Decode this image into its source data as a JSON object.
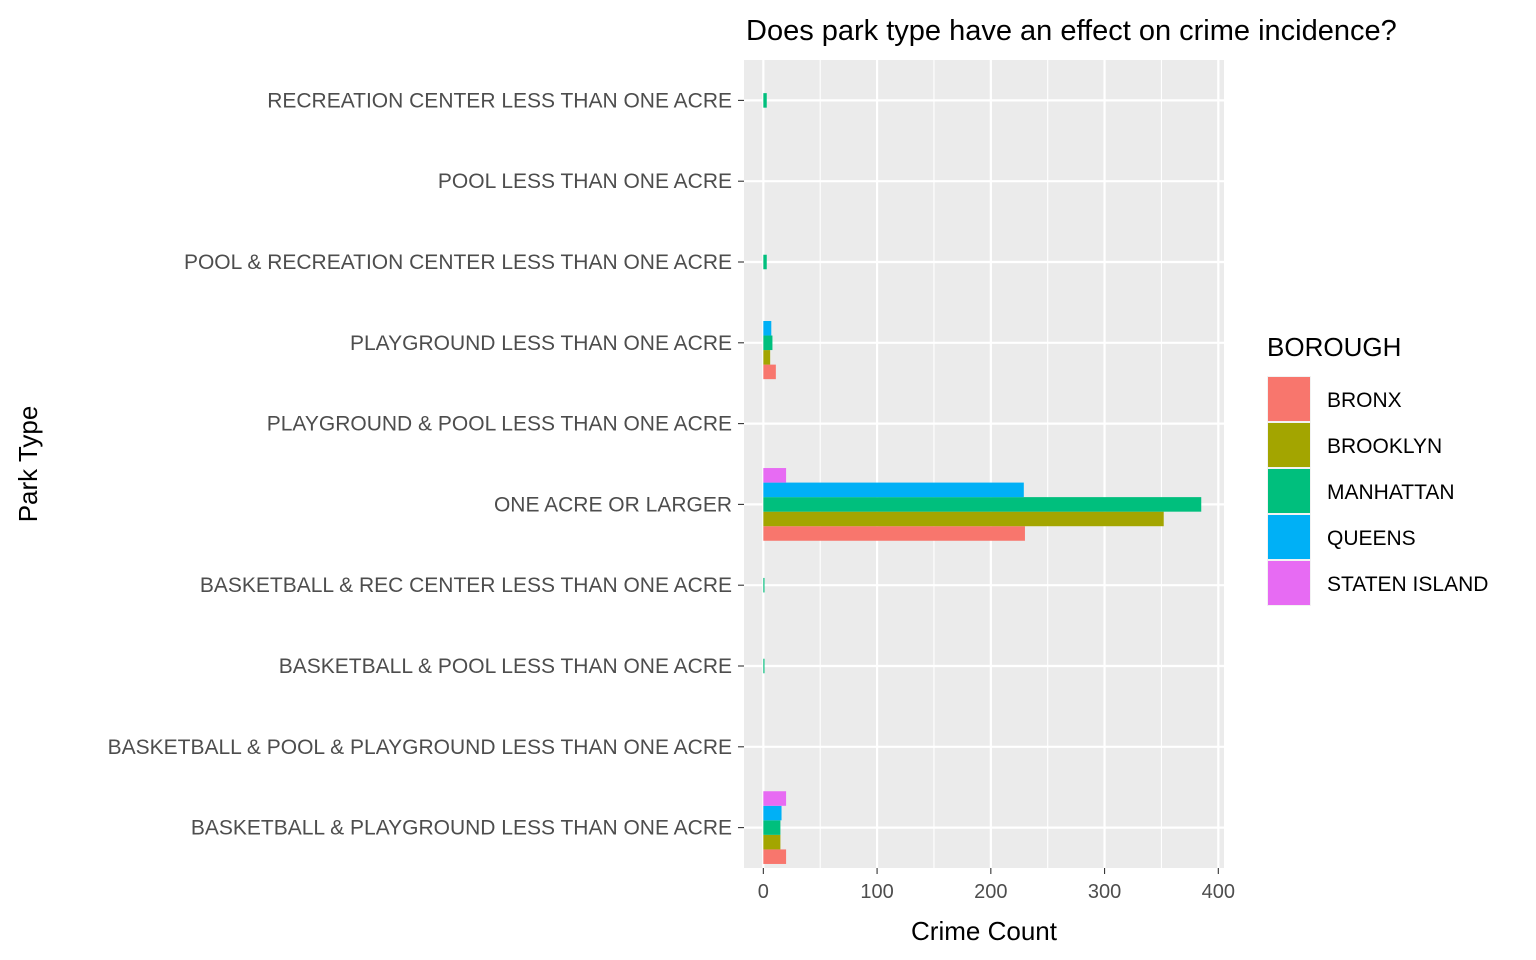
{
  "chart_data": {
    "type": "bar",
    "orientation": "horizontal",
    "title": "Does park type have an effect on crime incidence?",
    "xlabel": "Crime Count",
    "ylabel": "Park Type",
    "xlim": [
      -17,
      405
    ],
    "xticks": [
      0,
      100,
      200,
      300,
      400
    ],
    "grid": true,
    "legend_title": "BOROUGH",
    "legend_position": "right",
    "categories": [
      "BASKETBALL & PLAYGROUND LESS THAN ONE ACRE",
      "BASKETBALL & POOL & PLAYGROUND LESS THAN ONE ACRE",
      "BASKETBALL & POOL LESS THAN ONE ACRE",
      "BASKETBALL & REC CENTER LESS THAN ONE ACRE",
      "ONE ACRE OR LARGER",
      "PLAYGROUND & POOL LESS THAN ONE ACRE",
      "PLAYGROUND LESS THAN ONE ACRE",
      "POOL & RECREATION CENTER LESS THAN ONE ACRE",
      "POOL LESS THAN ONE ACRE",
      "RECREATION CENTER LESS THAN ONE ACRE"
    ],
    "series": [
      {
        "name": "BRONX",
        "color": "#F8766D",
        "values": [
          20,
          null,
          null,
          null,
          230,
          null,
          11,
          null,
          null,
          null
        ]
      },
      {
        "name": "BROOKLYN",
        "color": "#A3A500",
        "values": [
          15,
          null,
          null,
          null,
          352,
          null,
          6,
          null,
          null,
          null
        ]
      },
      {
        "name": "MANHATTAN",
        "color": "#00BF7D",
        "values": [
          15,
          null,
          1,
          1,
          385,
          null,
          8,
          3,
          null,
          3
        ]
      },
      {
        "name": "QUEENS",
        "color": "#00B0F6",
        "values": [
          16,
          null,
          null,
          null,
          229,
          null,
          7,
          null,
          null,
          null
        ]
      },
      {
        "name": "STATEN ISLAND",
        "color": "#E76BF3",
        "values": [
          20,
          null,
          null,
          null,
          20,
          null,
          null,
          null,
          null,
          null
        ]
      }
    ]
  }
}
